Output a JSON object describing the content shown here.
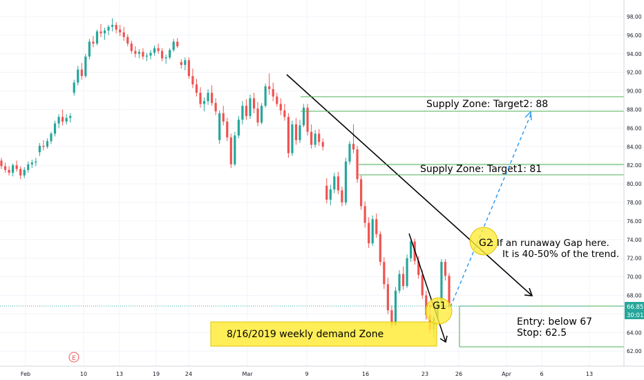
{
  "chart_data": {
    "type": "candlestick",
    "title": "",
    "xlabel": "",
    "ylabel": "",
    "ylim": [
      61,
      99
    ],
    "y_ticks": [
      "62.00",
      "64.00",
      "66.00",
      "68.00",
      "70.00",
      "72.00",
      "74.00",
      "76.00",
      "78.00",
      "80.00",
      "82.00",
      "84.00",
      "86.00",
      "88.00",
      "90.00",
      "92.00",
      "94.00",
      "96.00",
      "98.00"
    ],
    "x_ticks": [
      "Feb",
      "10",
      "13",
      "19",
      "24",
      "Mar",
      "9",
      "16",
      "23",
      "26",
      "Apr",
      "6",
      "13"
    ],
    "last_price": "66.85",
    "countdown": "30:01",
    "earnings_marker": "E",
    "colors": {
      "up": "#26a69a",
      "down": "#ef5350",
      "grid": "#f0f3fa",
      "price_line": "#26a69a",
      "zone_line": "#4caf50",
      "demand_fill": "#ffeb3b",
      "projection": "#2196f3"
    },
    "candles": [
      [
        82.5,
        82.8,
        81.6,
        81.9
      ],
      [
        81.9,
        82.3,
        81.2,
        81.5
      ],
      [
        81.5,
        81.9,
        80.9,
        81.2
      ],
      [
        81.2,
        82.2,
        80.8,
        82.0
      ],
      [
        82.0,
        82.5,
        81.3,
        81.6
      ],
      [
        81.6,
        81.9,
        80.5,
        80.9
      ],
      [
        80.9,
        81.8,
        80.6,
        81.5
      ],
      [
        81.5,
        82.4,
        81.2,
        82.1
      ],
      [
        82.1,
        82.6,
        81.7,
        82.3
      ],
      [
        82.3,
        82.8,
        81.9,
        82.4
      ],
      [
        83.4,
        84.4,
        83.0,
        84.1
      ],
      [
        84.1,
        84.7,
        83.6,
        84.0
      ],
      [
        84.0,
        84.9,
        83.8,
        84.6
      ],
      [
        84.6,
        85.6,
        84.3,
        85.4
      ],
      [
        85.4,
        86.8,
        85.1,
        86.5
      ],
      [
        86.5,
        87.5,
        86.0,
        87.2
      ],
      [
        87.2,
        88.0,
        86.3,
        86.7
      ],
      [
        86.7,
        87.5,
        86.4,
        87.1
      ],
      [
        87.1,
        87.6,
        86.6,
        87.3
      ],
      [
        89.8,
        91.2,
        89.5,
        90.9
      ],
      [
        90.9,
        92.7,
        90.6,
        92.3
      ],
      [
        92.3,
        93.0,
        91.2,
        91.6
      ],
      [
        91.6,
        94.0,
        91.4,
        93.7
      ],
      [
        93.7,
        95.6,
        93.4,
        95.3
      ],
      [
        95.3,
        95.9,
        94.7,
        95.1
      ],
      [
        95.1,
        96.6,
        94.9,
        96.4
      ],
      [
        96.4,
        97.2,
        95.8,
        96.2
      ],
      [
        96.2,
        96.8,
        95.5,
        96.5
      ],
      [
        96.5,
        97.1,
        96.0,
        96.9
      ],
      [
        96.9,
        97.8,
        96.4,
        97.1
      ],
      [
        97.1,
        97.4,
        96.2,
        96.6
      ],
      [
        96.6,
        97.1,
        95.9,
        96.3
      ],
      [
        96.3,
        96.9,
        95.4,
        95.8
      ],
      [
        95.8,
        96.1,
        94.8,
        95.1
      ],
      [
        95.1,
        95.4,
        94.0,
        94.3
      ],
      [
        94.3,
        94.8,
        93.6,
        94.0
      ],
      [
        94.0,
        94.5,
        93.5,
        94.2
      ],
      [
        94.2,
        94.6,
        93.4,
        93.7
      ],
      [
        93.7,
        94.1,
        93.2,
        93.8
      ],
      [
        93.8,
        94.4,
        93.4,
        94.1
      ],
      [
        94.1,
        94.9,
        93.8,
        94.6
      ],
      [
        94.6,
        95.1,
        94.0,
        94.3
      ],
      [
        94.3,
        94.6,
        93.2,
        93.5
      ],
      [
        93.5,
        93.9,
        92.9,
        93.6
      ],
      [
        93.6,
        94.6,
        93.4,
        94.4
      ],
      [
        94.4,
        95.6,
        94.2,
        95.3
      ],
      [
        95.3,
        95.7,
        94.6,
        94.8
      ],
      [
        93.1,
        93.4,
        92.4,
        92.8
      ],
      [
        92.8,
        93.6,
        92.2,
        93.3
      ],
      [
        93.3,
        93.6,
        91.3,
        91.6
      ],
      [
        91.6,
        92.4,
        90.3,
        90.7
      ],
      [
        90.7,
        91.3,
        89.4,
        89.8
      ],
      [
        89.8,
        90.4,
        88.2,
        88.6
      ],
      [
        88.6,
        89.3,
        87.8,
        88.9
      ],
      [
        88.9,
        90.2,
        88.5,
        89.8
      ],
      [
        89.8,
        90.6,
        88.4,
        88.7
      ],
      [
        88.7,
        89.2,
        87.4,
        87.8
      ],
      [
        84.7,
        87.9,
        84.3,
        87.6
      ],
      [
        87.6,
        88.4,
        86.3,
        86.7
      ],
      [
        86.7,
        87.1,
        84.6,
        85.0
      ],
      [
        85.0,
        85.4,
        81.7,
        82.1
      ],
      [
        82.1,
        85.6,
        81.9,
        85.2
      ],
      [
        85.2,
        87.3,
        84.9,
        86.9
      ],
      [
        86.9,
        88.9,
        86.4,
        88.4
      ],
      [
        88.4,
        89.1,
        86.9,
        87.3
      ],
      [
        87.3,
        89.6,
        87.0,
        89.2
      ],
      [
        89.2,
        89.8,
        87.6,
        88.1
      ],
      [
        88.1,
        88.8,
        86.2,
        86.6
      ],
      [
        86.6,
        88.7,
        86.4,
        88.4
      ],
      [
        88.4,
        90.8,
        88.2,
        90.5
      ],
      [
        90.5,
        91.9,
        89.6,
        90.2
      ],
      [
        90.2,
        90.9,
        88.9,
        89.4
      ],
      [
        89.4,
        89.8,
        88.3,
        88.6
      ],
      [
        88.6,
        89.2,
        87.4,
        87.9
      ],
      [
        87.9,
        88.6,
        86.8,
        87.2
      ],
      [
        87.2,
        87.6,
        82.8,
        83.3
      ],
      [
        83.3,
        86.8,
        83.0,
        86.4
      ],
      [
        86.4,
        87.1,
        84.2,
        84.7
      ],
      [
        84.7,
        86.9,
        84.4,
        86.3
      ],
      [
        86.3,
        88.6,
        86.1,
        88.2
      ],
      [
        88.2,
        88.6,
        85.2,
        85.6
      ],
      [
        85.6,
        86.4,
        83.8,
        84.2
      ],
      [
        84.2,
        85.8,
        83.9,
        85.4
      ],
      [
        85.4,
        85.9,
        84.1,
        84.5
      ],
      [
        84.5,
        84.9,
        83.6,
        84.0
      ],
      [
        79.8,
        80.6,
        77.9,
        78.3
      ],
      [
        78.3,
        79.9,
        77.7,
        79.4
      ],
      [
        79.4,
        81.2,
        79.0,
        80.8
      ],
      [
        80.8,
        81.3,
        78.9,
        79.3
      ],
      [
        79.3,
        79.7,
        77.6,
        78.0
      ],
      [
        78.0,
        82.8,
        77.7,
        82.4
      ],
      [
        82.4,
        84.6,
        82.1,
        84.3
      ],
      [
        84.3,
        86.4,
        83.3,
        83.7
      ],
      [
        83.7,
        84.1,
        80.1,
        80.5
      ],
      [
        80.5,
        80.9,
        77.2,
        77.6
      ],
      [
        77.6,
        78.1,
        75.3,
        75.8
      ],
      [
        75.8,
        76.4,
        73.1,
        73.6
      ],
      [
        73.6,
        76.6,
        73.3,
        76.2
      ],
      [
        76.2,
        76.8,
        74.2,
        74.6
      ],
      [
        74.6,
        74.9,
        71.2,
        71.6
      ],
      [
        71.6,
        72.1,
        68.7,
        69.2
      ],
      [
        69.2,
        69.9,
        66.0,
        66.4
      ],
      [
        66.4,
        66.9,
        64.4,
        64.8
      ],
      [
        64.8,
        68.9,
        64.6,
        68.5
      ],
      [
        68.5,
        70.7,
        68.2,
        70.3
      ],
      [
        70.3,
        71.1,
        68.6,
        69.0
      ],
      [
        69.0,
        72.4,
        68.8,
        72.0
      ],
      [
        72.0,
        74.2,
        71.6,
        73.8
      ],
      [
        73.8,
        74.1,
        71.3,
        71.7
      ],
      [
        71.7,
        72.2,
        69.8,
        70.2
      ],
      [
        70.2,
        70.7,
        67.6,
        68.0
      ],
      [
        68.0,
        68.5,
        65.4,
        65.9
      ],
      [
        65.9,
        67.1,
        63.9,
        64.3
      ],
      [
        64.3,
        65.9,
        63.4,
        65.6
      ],
      [
        65.6,
        67.6,
        65.3,
        67.2
      ],
      [
        67.2,
        71.9,
        66.9,
        71.6
      ],
      [
        71.6,
        71.9,
        69.6,
        70.1
      ],
      [
        70.1,
        70.4,
        66.5,
        66.85
      ]
    ]
  },
  "annotations": {
    "supply_zone_2": "Supply Zone:  Target2: 88",
    "supply_zone_1": "Supply Zone:  Target1: 81",
    "g2_label": "G2",
    "g2_text_line1": ": If an runaway Gap here.",
    "g2_text_line2": "It is 40-50% of the trend.",
    "g1_label": "G1",
    "demand_zone": "8/16/2019 weekly demand Zone",
    "entry": "Entry: below 67",
    "stop": "Stop: 62.5"
  }
}
